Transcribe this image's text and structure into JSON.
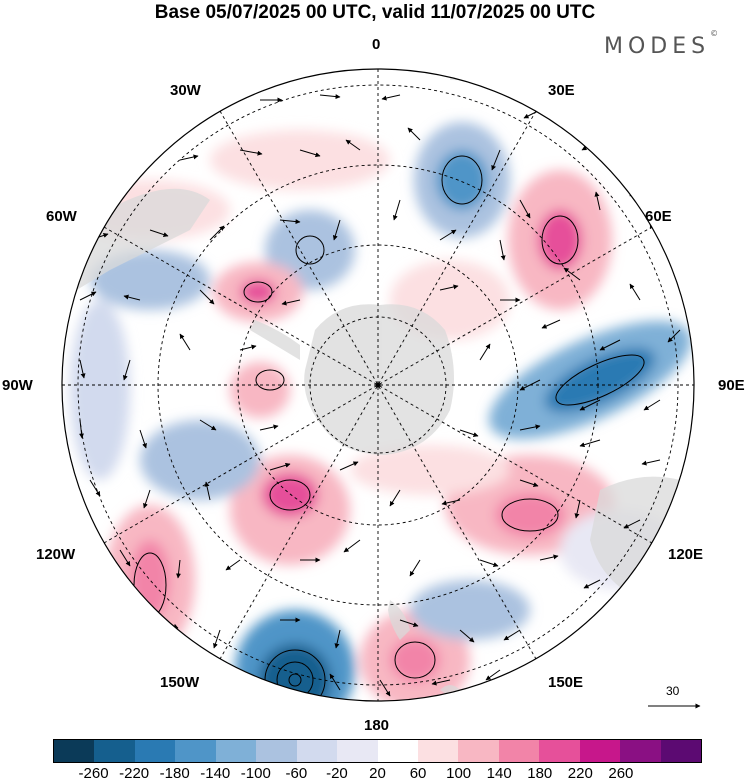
{
  "title": "Base 05/07/2025 00 UTC, valid 11/07/2025 00 UTC",
  "brand": "MODES",
  "brand_mark": "©",
  "map": {
    "projection": "south-polar-stereographic",
    "longitude_labels": {
      "0": "0",
      "30E": "30E",
      "60E": "60E",
      "90E": "90E",
      "120E": "120E",
      "150E": "150E",
      "180": "180",
      "150W": "150W",
      "120W": "120W",
      "90W": "90W",
      "60W": "60W",
      "30W": "30W"
    },
    "reference_vector_label": "30",
    "colors": {
      "land": "#d9d9d9",
      "background": "#ffffff"
    }
  },
  "colorbar": {
    "colors": [
      "#0b3a58",
      "#155f8e",
      "#2a7ab3",
      "#4f95c8",
      "#7fb0d7",
      "#abc2e0",
      "#d2daee",
      "#e8e8f4",
      "#ffffff",
      "#fce0e2",
      "#f8b7c3",
      "#f284a8",
      "#e6509a",
      "#c7178b",
      "#8a1083",
      "#5c0a72"
    ],
    "tick_labels": [
      "-260",
      "-220",
      "-180",
      "-140",
      "-100",
      "-60",
      "-20",
      "20",
      "60",
      "100",
      "140",
      "180",
      "220",
      "260"
    ]
  }
}
